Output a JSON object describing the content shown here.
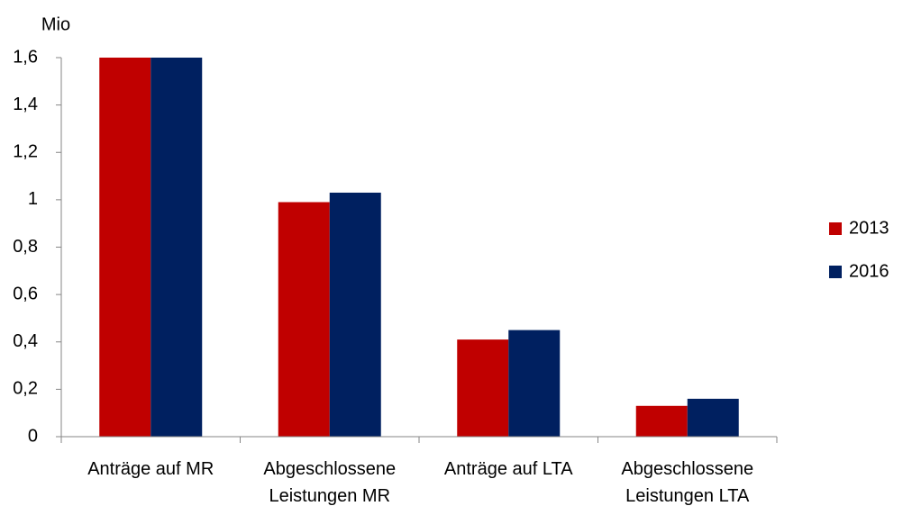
{
  "chart_data": {
    "type": "bar",
    "y_axis_label": "Mio",
    "categories": [
      "Anträge auf MR",
      "Abgeschlossene Leistungen MR",
      "Anträge auf LTA",
      "Abgeschlossene Leistungen LTA"
    ],
    "series": [
      {
        "name": "2013",
        "color": "#c00000",
        "values": [
          1.6,
          0.99,
          0.41,
          0.13
        ]
      },
      {
        "name": "2016",
        "color": "#002060",
        "values": [
          1.6,
          1.03,
          0.45,
          0.16
        ]
      }
    ],
    "ylim": [
      0,
      1.6
    ],
    "yticks": [
      0,
      {
        "value": 0.2,
        "label": "0,2"
      },
      {
        "value": 0.4,
        "label": "0,4"
      },
      {
        "value": 0.6,
        "label": "0,6"
      },
      {
        "value": 0.8,
        "label": "0,8"
      },
      1,
      {
        "value": 1.2,
        "label": "1,2"
      },
      {
        "value": 1.4,
        "label": "1,4"
      },
      {
        "value": 1.6,
        "label": "1,6"
      }
    ],
    "grid": false,
    "legend": "right"
  }
}
